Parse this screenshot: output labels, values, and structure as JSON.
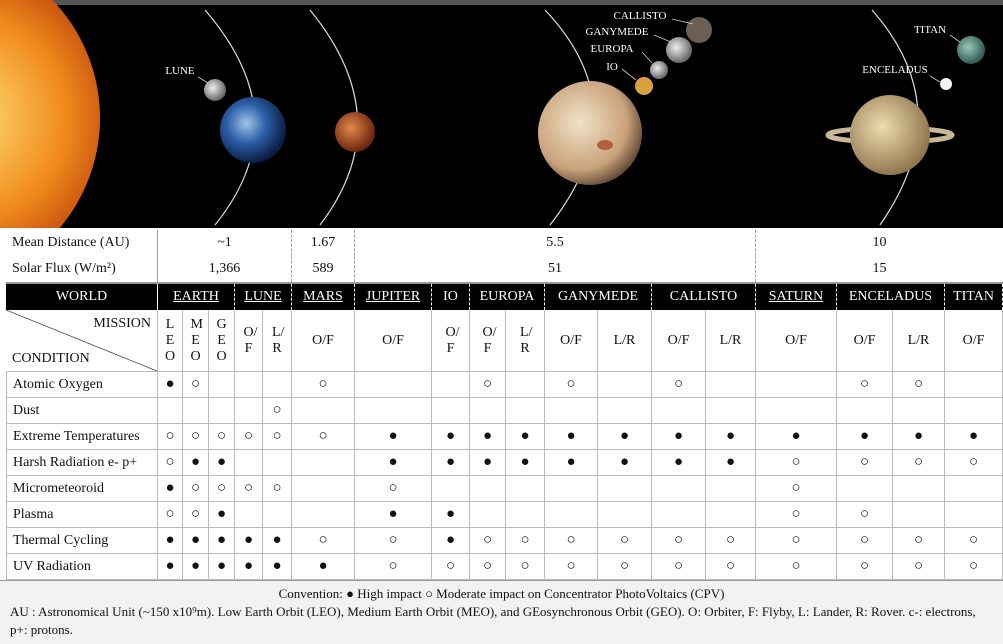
{
  "image": {
    "labels": [
      "LUNE",
      "CALLISTO",
      "GANYMEDE",
      "EUROPA",
      "IO",
      "TITAN",
      "ENCELADUS"
    ]
  },
  "table": {
    "distance": {
      "label": "Mean Distance (AU)",
      "values": [
        "~1",
        "1.67",
        "5.5",
        "10"
      ]
    },
    "flux": {
      "label": "Solar Flux (W/m²)",
      "values": [
        "1,366",
        "589",
        "51",
        "15"
      ]
    },
    "world_header": "WORLD",
    "mission_header": "MISSION",
    "condition_header": "CONDITION",
    "worlds": [
      {
        "name": "EARTH",
        "underline": true,
        "missions": [
          "LEO",
          "MEO",
          "GEO"
        ]
      },
      {
        "name": "LUNE",
        "underline": true,
        "missions": [
          "O/F",
          "L/R"
        ]
      },
      {
        "name": "MARS",
        "underline": true,
        "missions": [
          "O/F"
        ]
      },
      {
        "name": "JUPITER",
        "underline": true,
        "missions": [
          "O/F"
        ]
      },
      {
        "name": "IO",
        "underline": false,
        "missions": [
          "O/F"
        ]
      },
      {
        "name": "EUROPA",
        "underline": false,
        "missions": [
          "O/F",
          "L/R"
        ]
      },
      {
        "name": "GANYMEDE",
        "underline": false,
        "missions": [
          "O/F",
          "L/R"
        ]
      },
      {
        "name": "CALLISTO",
        "underline": false,
        "missions": [
          "O/F",
          "L/R"
        ]
      },
      {
        "name": "SATURN",
        "underline": true,
        "missions": [
          "O/F"
        ]
      },
      {
        "name": "ENCELADUS",
        "underline": false,
        "missions": [
          "O/F",
          "L/R"
        ]
      },
      {
        "name": "TITAN",
        "underline": false,
        "missions": [
          "O/F"
        ]
      }
    ],
    "rows": [
      {
        "condition": "Atomic Oxygen",
        "cells": [
          "●",
          "○",
          null,
          null,
          null,
          "○",
          null,
          null,
          "○",
          null,
          "○",
          null,
          "○",
          null,
          null,
          "○",
          "○",
          null
        ]
      },
      {
        "condition": "Dust",
        "cells": [
          null,
          null,
          null,
          null,
          "○",
          null,
          null,
          null,
          null,
          null,
          null,
          null,
          null,
          null,
          null,
          null,
          null,
          null
        ]
      },
      {
        "condition": "Extreme Temperatures",
        "cells": [
          "○",
          "○",
          "○",
          "○",
          "○",
          "○",
          "●",
          "●",
          "●",
          "●",
          "●",
          "●",
          "●",
          "●",
          "●",
          "●",
          "●",
          "●"
        ]
      },
      {
        "condition": "Harsh Radiation e- p+",
        "cells": [
          "○",
          "●",
          "●",
          null,
          null,
          null,
          "●",
          "●",
          "●",
          "●",
          "●",
          "●",
          "●",
          "●",
          "○",
          "○",
          "○",
          "○"
        ]
      },
      {
        "condition": "Micrometeoroid",
        "cells": [
          "●",
          "○",
          "○",
          "○",
          "○",
          null,
          "○",
          null,
          null,
          null,
          null,
          null,
          null,
          null,
          "○",
          null,
          null,
          null
        ]
      },
      {
        "condition": "Plasma",
        "cells": [
          "○",
          "○",
          "●",
          null,
          null,
          null,
          "●",
          "●",
          null,
          null,
          null,
          null,
          null,
          null,
          "○",
          "○",
          null,
          null
        ]
      },
      {
        "condition": "Thermal Cycling",
        "cells": [
          "●",
          "●",
          "●",
          "●",
          "●",
          "○",
          "○",
          "●",
          "○",
          "○",
          "○",
          "○",
          "○",
          "○",
          "○",
          "○",
          "○",
          "○"
        ]
      },
      {
        "condition": "UV Radiation",
        "cells": [
          "●",
          "●",
          "●",
          "●",
          "●",
          "●",
          "○",
          "○",
          "○",
          "○",
          "○",
          "○",
          "○",
          "○",
          "○",
          "○",
          "○",
          "○"
        ]
      }
    ]
  },
  "footer": {
    "convention": "Convention: ● High impact ○ Moderate impact on Concentrator PhotoVoltaics (CPV)",
    "notes": "AU : Astronomical Unit (~150 x10⁹m). Low Earth Orbit (LEO), Medium Earth Orbit (MEO), and GEosynchronous Orbit (GEO). O: Orbiter, F: Flyby, L: Lander, R: Rover. c-: electrons, p+: protons."
  }
}
